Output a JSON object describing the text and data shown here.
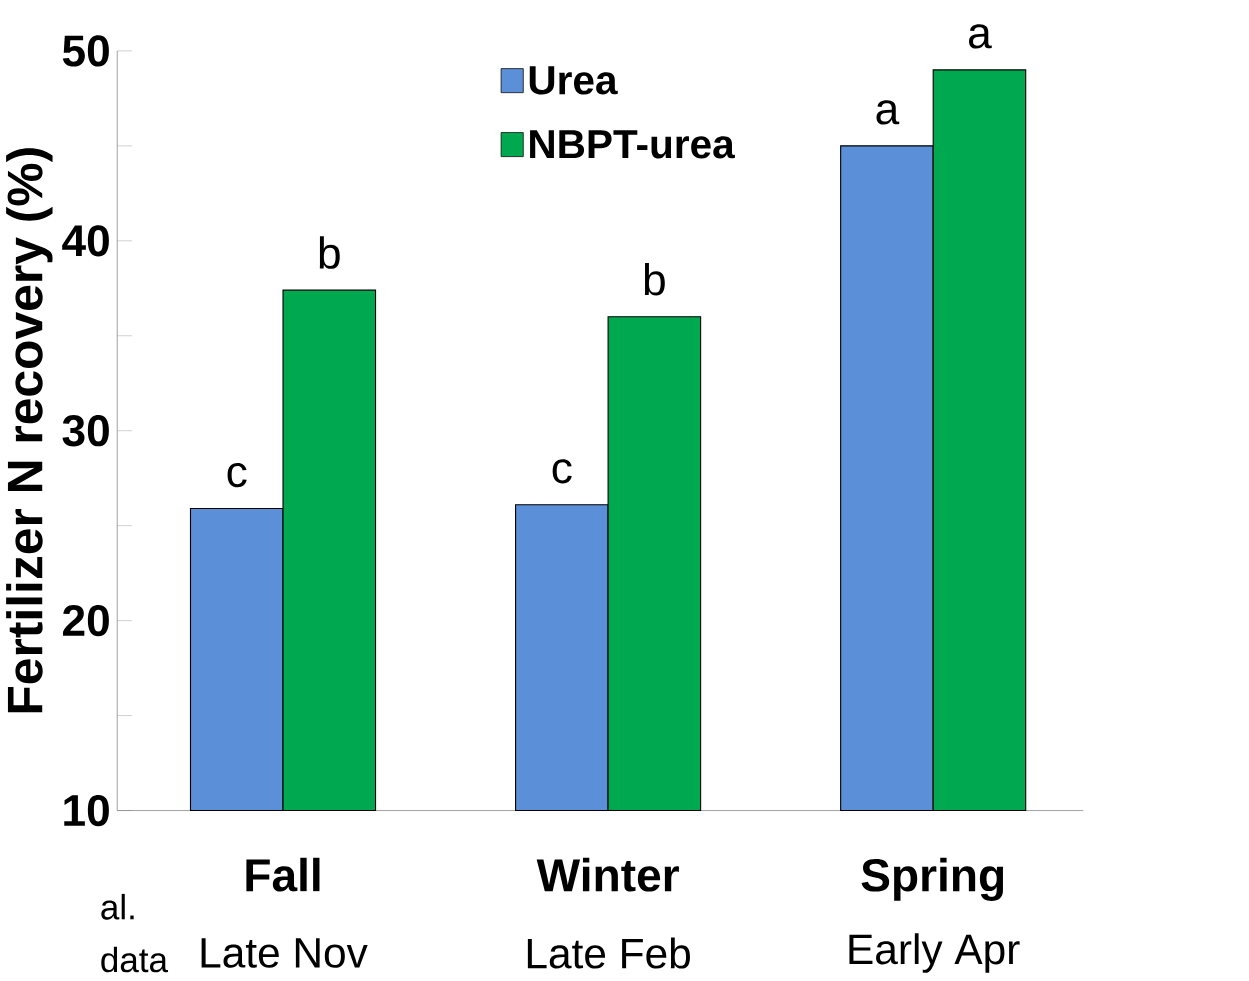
{
  "chart_data": {
    "type": "bar",
    "ylabel": "Fertilizer N recovery (%)",
    "categories": [
      "Fall",
      "Winter",
      "Spring"
    ],
    "series": [
      {
        "name": "Urea",
        "color": "#5b8fd7",
        "values": [
          25.9,
          26.1,
          45.0
        ],
        "value_labels": [
          "c",
          "c",
          "a"
        ]
      },
      {
        "name": "NBPT-urea",
        "color": "#00a94f",
        "values": [
          37.4,
          36.0,
          49.0
        ],
        "value_labels": [
          "b",
          "b",
          "a"
        ]
      }
    ],
    "ylim": [
      10,
      50
    ],
    "yticks": [
      10,
      {
        "value": 15,
        "label": null
      },
      20,
      {
        "value": 25,
        "label": null
      },
      30,
      {
        "value": 35,
        "label": null
      },
      40,
      {
        "value": 45,
        "label": null
      },
      50
    ],
    "grid": false,
    "legend": "top",
    "annotations": [
      "Late Nov",
      "Late Feb",
      "Early Apr",
      "al.",
      "data"
    ]
  }
}
